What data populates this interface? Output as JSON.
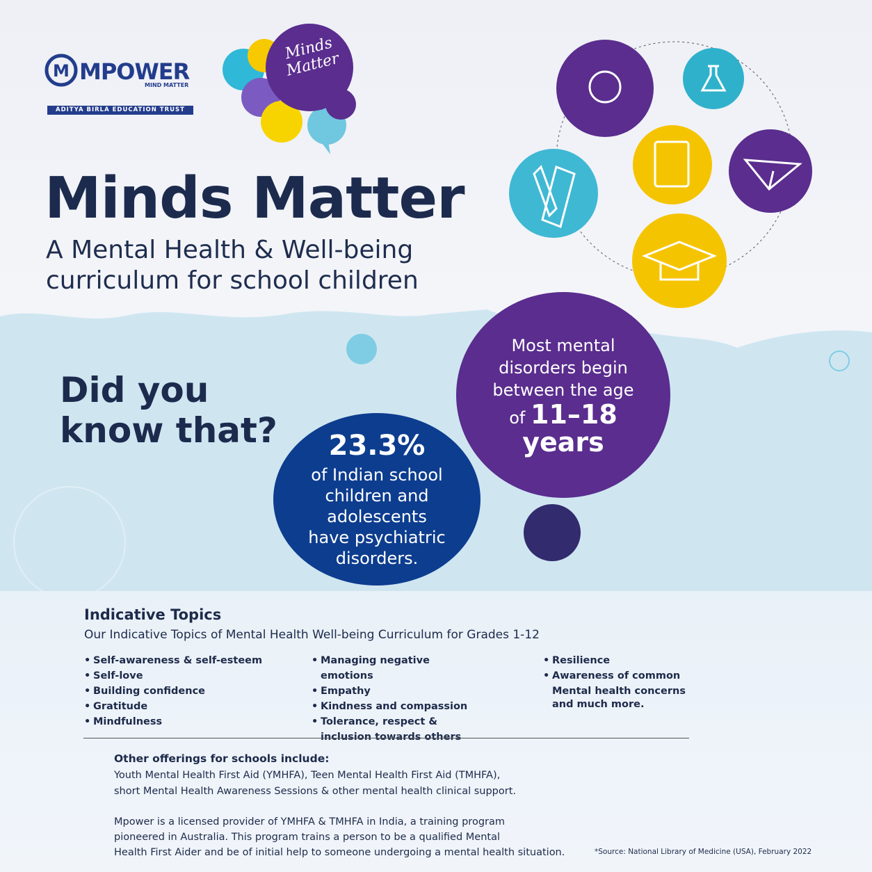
{
  "logo": {
    "brand": "MPOWER",
    "tagline": "MIND MATTER",
    "trust": "ADITYA BIRLA EDUCATION TRUST"
  },
  "badge": "Minds Matter",
  "header": {
    "title": "Minds Matter",
    "subtitle_lines": [
      "A Mental Health & Well-being",
      "curriculum for school children"
    ]
  },
  "question_lines": [
    "Did you",
    "know that?"
  ],
  "stat_one": {
    "figure": "23.3%",
    "lines": [
      "of Indian school",
      "children and",
      "adolescents",
      "have psychiatric",
      "disorders."
    ]
  },
  "stat_two": {
    "lines": [
      "Most mental",
      "disorders begin",
      "between the age"
    ],
    "of": "of",
    "range": "11–18",
    "unit": "years"
  },
  "topics": {
    "heading": "Indicative Topics",
    "intro": "Our Indicative Topics of Mental Health Well-being Curriculum for Grades 1-12",
    "columns": [
      [
        "Self-awareness & self-esteem",
        "Self-love",
        "Building confidence",
        "Gratitude",
        "Mindfulness"
      ],
      [
        "Managing negative emotions",
        "Empathy",
        "Kindness and compassion",
        "Tolerance, respect & inclusion towards others"
      ],
      [
        "Resilience",
        "Awareness of common Mental health concerns"
      ]
    ],
    "closing": "and much more."
  },
  "offerings": {
    "heading": "Other offerings for schools include:",
    "lines": [
      "Youth Mental Health First Aid (YMHFA), Teen Mental Health First Aid (TMHFA),",
      "short Mental Health Awareness Sessions & other mental health clinical support."
    ],
    "about_lines": [
      "Mpower is a licensed provider of YMHFA & TMHFA in India, a training program",
      "pioneered in Australia. This program trains a person to be a qualified Mental",
      "Health First Aider and be of initial help to someone undergoing a mental health situation."
    ]
  },
  "source": "*Source: National Library of Medicine (USA), February 2022"
}
